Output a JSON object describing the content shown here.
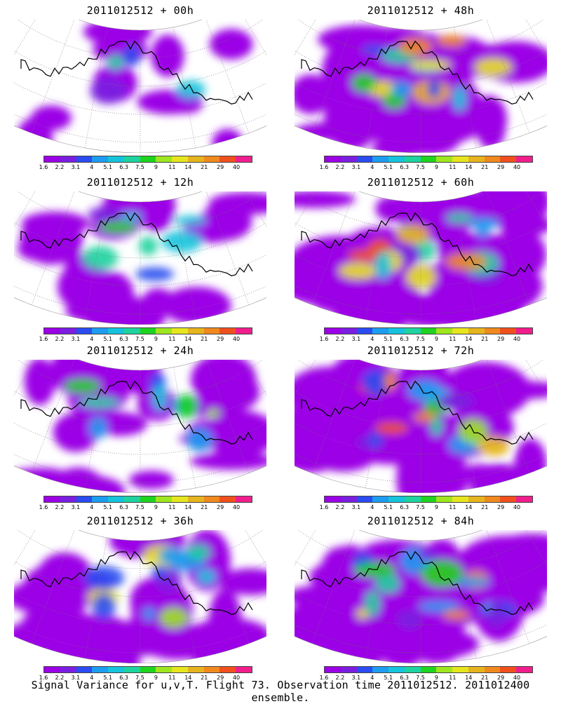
{
  "panels": [
    {
      "title": "2011012512 + 00h",
      "activity": 0.15
    },
    {
      "title": "2011012512 + 48h",
      "activity": 0.75
    },
    {
      "title": "2011012512 + 12h",
      "activity": 0.35
    },
    {
      "title": "2011012512 + 60h",
      "activity": 0.85
    },
    {
      "title": "2011012512 + 24h",
      "activity": 0.45
    },
    {
      "title": "2011012512 + 72h",
      "activity": 0.9
    },
    {
      "title": "2011012512 + 36h",
      "activity": 0.6
    },
    {
      "title": "2011012512 + 84h",
      "activity": 0.95
    }
  ],
  "colorbar": {
    "labels": [
      "1.6",
      "2.2",
      "3.1",
      "4",
      "5.1",
      "6.3",
      "7.5",
      "9",
      "11",
      "14",
      "21",
      "29",
      "40"
    ],
    "colors": [
      "#9b00e6",
      "#7a1fe0",
      "#2a4cf0",
      "#1e9cf0",
      "#15c4dc",
      "#1ed3a0",
      "#1ed41e",
      "#9ee61e",
      "#e6e61e",
      "#e6b41e",
      "#f08a1e",
      "#f0501e",
      "#f01e8c"
    ]
  },
  "caption": "Signal Variance for u,v,T. Flight 73. Observation time 2011012512. 2011012400 ensemble."
}
